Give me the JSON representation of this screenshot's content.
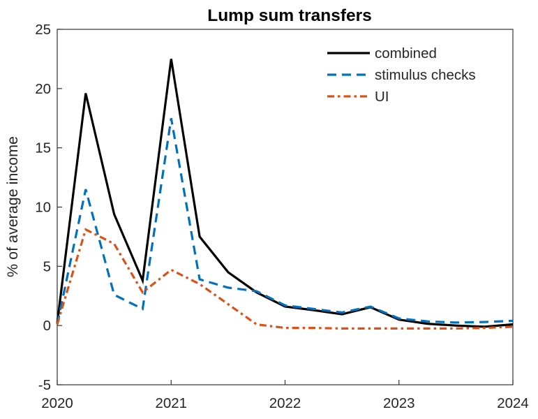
{
  "chart_data": {
    "type": "line",
    "title": "Lump sum transfers",
    "xlabel": "",
    "ylabel": "% of average income",
    "xlim": [
      2020,
      2024
    ],
    "ylim": [
      -5,
      25
    ],
    "xticks": [
      2020,
      2021,
      2022,
      2023,
      2024
    ],
    "yticks": [
      -5,
      0,
      5,
      10,
      15,
      20,
      25
    ],
    "grid": false,
    "legend": {
      "position": "upper right inside",
      "frame": false
    },
    "x_unit": "year (quarterly points)",
    "x": [
      2020,
      2020.25,
      2020.5,
      2020.75,
      2021,
      2021.25,
      2021.5,
      2021.75,
      2022,
      2022.25,
      2022.5,
      2022.75,
      2023,
      2023.25,
      2023.5,
      2023.75,
      2024
    ],
    "series": [
      {
        "name": "combined",
        "color": "#000000",
        "line_style": "solid",
        "line_width": 3.2,
        "values": [
          0.2,
          19.6,
          9.4,
          3.8,
          22.5,
          7.5,
          4.5,
          2.8,
          1.6,
          1.3,
          0.95,
          1.55,
          0.5,
          0.15,
          0.0,
          -0.1,
          0.1
        ]
      },
      {
        "name": "stimulus checks",
        "color": "#0072BD",
        "line_style": "dashed",
        "line_width": 3.2,
        "values": [
          0.1,
          11.5,
          2.6,
          1.4,
          17.5,
          3.9,
          3.2,
          2.9,
          1.7,
          1.4,
          1.1,
          1.6,
          0.6,
          0.35,
          0.25,
          0.3,
          0.4
        ]
      },
      {
        "name": "UI",
        "color": "#D95319",
        "line_style": "dashdot",
        "line_width": 3.2,
        "values": [
          0.1,
          8.1,
          6.9,
          2.8,
          4.7,
          3.5,
          1.8,
          0.1,
          -0.2,
          -0.2,
          -0.25,
          -0.25,
          -0.25,
          -0.25,
          -0.25,
          -0.2,
          -0.1
        ]
      }
    ]
  }
}
